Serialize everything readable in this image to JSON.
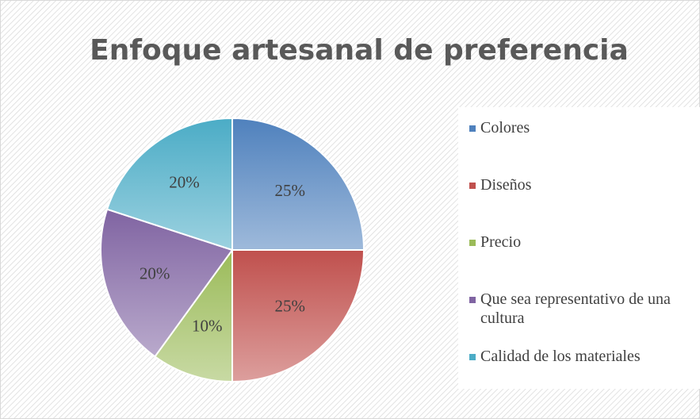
{
  "chart_data": {
    "type": "pie",
    "title": "Enfoque artesanal de preferencia",
    "categories": [
      "Colores",
      "Diseños",
      "Precio",
      "Que sea representativo de una cultura",
      "Calidad de los materiales"
    ],
    "values": [
      25,
      25,
      10,
      20,
      20
    ],
    "value_labels": [
      "25%",
      "25%",
      "10%",
      "20%",
      "20%"
    ],
    "colors": [
      "#4f81bd",
      "#c0504d",
      "#9bbb59",
      "#8064a2",
      "#4bacc6"
    ],
    "legend": "right"
  }
}
